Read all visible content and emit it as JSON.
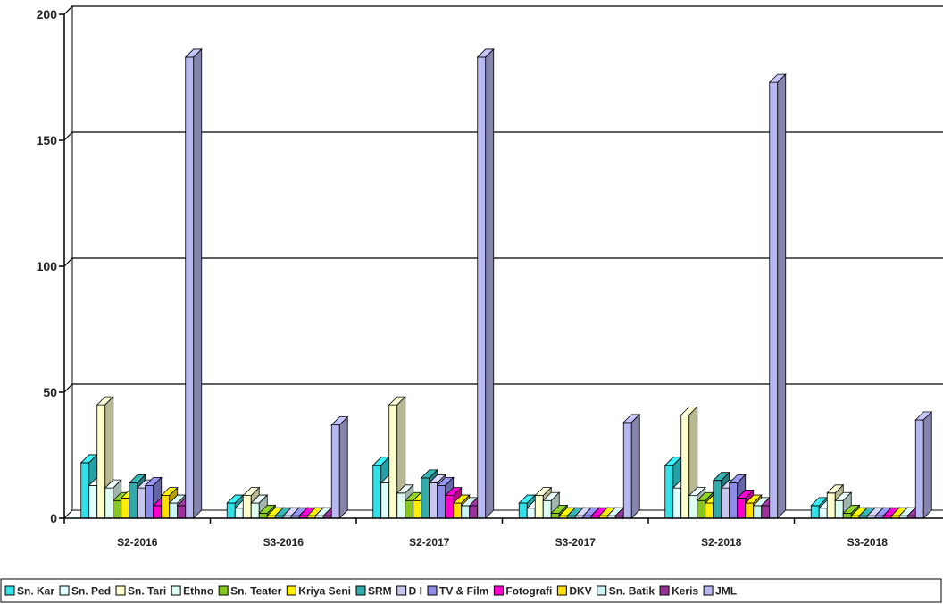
{
  "chart_data": {
    "type": "bar",
    "style": "3d-clustered-column",
    "categories": [
      "S2-2016",
      "S3-2016",
      "S2-2017",
      "S3-2017",
      "S2-2018",
      "S3-2018"
    ],
    "ylim": [
      0,
      200
    ],
    "yticks": [
      0,
      50,
      100,
      150,
      200
    ],
    "grid": true,
    "legend_position": "bottom",
    "series": [
      {
        "name": "Sn. Kar",
        "color": "#33e0e6",
        "values": [
          22,
          6,
          21,
          6,
          21,
          5
        ]
      },
      {
        "name": "Sn. Ped",
        "color": "#e0ffff",
        "values": [
          13,
          4,
          14,
          4,
          12,
          4
        ]
      },
      {
        "name": "Sn. Tari",
        "color": "#ffffcc",
        "values": [
          45,
          9,
          45,
          9,
          41,
          10
        ]
      },
      {
        "name": "Ethno",
        "color": "#ddfdf3",
        "values": [
          12,
          6,
          10,
          7,
          9,
          7
        ]
      },
      {
        "name": "Sn. Teater",
        "color": "#86c623",
        "values": [
          7,
          2,
          7,
          2,
          7,
          2
        ]
      },
      {
        "name": "Kriya Seni",
        "color": "#ffee00",
        "values": [
          8,
          1,
          7,
          1,
          6,
          1
        ]
      },
      {
        "name": "SRM",
        "color": "#33aaaa",
        "values": [
          14,
          1,
          16,
          1,
          15,
          1
        ]
      },
      {
        "name": "D I",
        "color": "#c6c6ee",
        "values": [
          12,
          1,
          14,
          1,
          12,
          1
        ]
      },
      {
        "name": "TV & Film",
        "color": "#8c8ce8",
        "values": [
          13,
          1,
          13,
          1,
          14,
          1
        ]
      },
      {
        "name": "Fotografi",
        "color": "#ff00cc",
        "values": [
          5,
          1,
          9,
          1,
          8,
          1
        ]
      },
      {
        "name": "DKV",
        "color": "#ffdd00",
        "values": [
          9,
          1,
          6,
          1,
          6,
          1
        ]
      },
      {
        "name": "Sn. Batik",
        "color": "#ccf4f4",
        "values": [
          6,
          1,
          5,
          1,
          5,
          1
        ]
      },
      {
        "name": "Keris",
        "color": "#993399",
        "values": [
          5,
          1,
          5,
          1,
          5,
          1
        ]
      },
      {
        "name": "JML",
        "color": "#b8b8f0",
        "values": [
          183,
          37,
          183,
          38,
          173,
          39
        ]
      }
    ]
  }
}
